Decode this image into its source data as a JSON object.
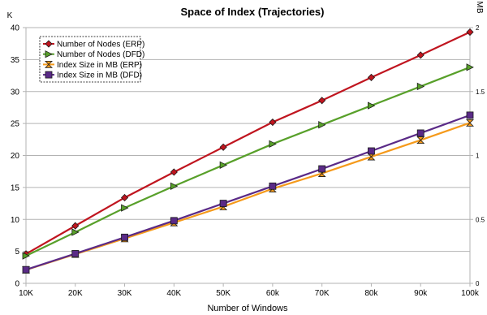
{
  "chart_data": {
    "type": "line",
    "title": "Space of Index (Trajectories)",
    "xlabel": "Number of Windows",
    "ylabel_left": "K",
    "ylabel_right": "MB",
    "categories": [
      "10K",
      "20K",
      "30K",
      "40K",
      "50K",
      "60k",
      "70K",
      "80k",
      "90k",
      "100k"
    ],
    "y_left": {
      "lim": [
        0,
        40
      ],
      "ticks": [
        "0",
        "5",
        "10",
        "15",
        "20",
        "25",
        "30",
        "35",
        "40"
      ]
    },
    "y_right": {
      "lim": [
        0,
        2
      ],
      "ticks": [
        "0",
        "0.5",
        "1",
        "1.5",
        "2"
      ]
    },
    "grid": "horizontal",
    "legend_position": "top-left",
    "series": [
      {
        "name": "Number of Nodes (ERP)",
        "axis": "left",
        "color": "#c0151f",
        "marker": "diamond",
        "values": [
          4.6,
          9.0,
          13.4,
          17.4,
          21.3,
          25.2,
          28.6,
          32.2,
          35.7,
          39.3
        ]
      },
      {
        "name": "Number of Nodes (DFD)",
        "axis": "left",
        "color": "#58a02a",
        "marker": "triangle-right",
        "values": [
          4.3,
          8.0,
          11.8,
          15.2,
          18.5,
          21.8,
          24.8,
          27.8,
          30.8,
          33.8
        ]
      },
      {
        "name": "Index Size in MB  (ERP)",
        "axis": "right",
        "color": "#f59a1b",
        "marker": "hourglass",
        "values": [
          0.105,
          0.228,
          0.35,
          0.475,
          0.6,
          0.74,
          0.86,
          0.99,
          1.12,
          1.255
        ]
      },
      {
        "name": "Index Size in MB  (DFD)",
        "axis": "right",
        "color": "#5a2a87",
        "marker": "square",
        "values": [
          0.107,
          0.232,
          0.36,
          0.49,
          0.625,
          0.76,
          0.895,
          1.035,
          1.175,
          1.315
        ]
      }
    ]
  }
}
